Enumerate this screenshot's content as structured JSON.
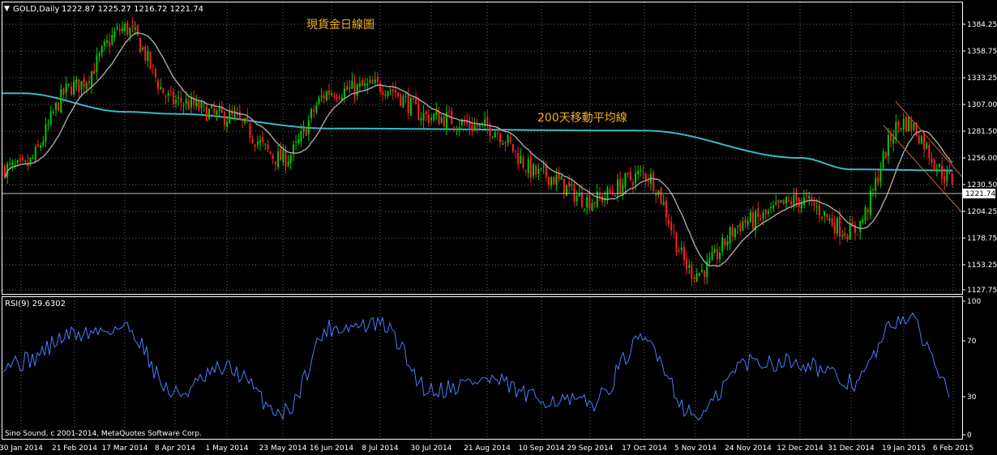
{
  "header": {
    "symbol_label": "GOLD,Daily",
    "ohlc": "1222.87 1225.27 1216.72 1221.74"
  },
  "annotations": {
    "title_cn": "現貨金日線圖",
    "ma200_label": "200天移動平均線",
    "copyright": "Sino Sound, c 2001-2014, MetaQuotes Software Corp."
  },
  "colors": {
    "background": "#000000",
    "frame": "#ffffff",
    "grid": "#6b6b6b",
    "bull": "#00cc00",
    "bear": "#ff2020",
    "ma_short": "#a8a8a8",
    "ma200": "#3ab8c8",
    "channel": "#c86432",
    "annotation": "#f0b020",
    "rsi": "#4a7cff",
    "current_price_line": "#c0c0c0"
  },
  "chart_data": [
    {
      "type": "candlestick",
      "instrument": "GOLD",
      "timeframe": "Daily",
      "last_price": 1221.74,
      "ylim": [
        1127.75,
        1397.0
      ],
      "y_ticks": [
        1384.25,
        1358.75,
        1333.25,
        1307.0,
        1281.5,
        1256.0,
        1230.5,
        1204.25,
        1178.75,
        1153.25,
        1127.75
      ],
      "current_price_label": "1221.74",
      "x_tick_labels": [
        "30 Jan 2014",
        "21 Feb 2014",
        "17 Mar 2014",
        "8 Apr 2014",
        "1 May 2014",
        "23 May 2014",
        "16 Jun 2014",
        "8 Jul 2014",
        "30 Jul 2014",
        "21 Aug 2014",
        "10 Sep 2014",
        "29 Sep 2014",
        "17 Oct 2014",
        "5 Nov 2014",
        "24 Nov 2014",
        "12 Dec 2014",
        "31 Dec 2014",
        "19 Jan 2015",
        "6 Feb 2015"
      ],
      "approx_closes": [
        {
          "date": "30 Jan 2014",
          "close": 1246
        },
        {
          "date": "21 Feb 2014",
          "close": 1325
        },
        {
          "date": "17 Mar 2014",
          "close": 1380
        },
        {
          "date": "8 Apr 2014",
          "close": 1310
        },
        {
          "date": "1 May 2014",
          "close": 1295
        },
        {
          "date": "23 May 2014",
          "close": 1255
        },
        {
          "date": "16 Jun 2014",
          "close": 1320
        },
        {
          "date": "8 Jul 2014",
          "close": 1325
        },
        {
          "date": "30 Jul 2014",
          "close": 1295
        },
        {
          "date": "21 Aug 2014",
          "close": 1285
        },
        {
          "date": "10 Sep 2014",
          "close": 1240
        },
        {
          "date": "29 Sep 2014",
          "close": 1215
        },
        {
          "date": "17 Oct 2014",
          "close": 1240
        },
        {
          "date": "5 Nov 2014",
          "close": 1145
        },
        {
          "date": "24 Nov 2014",
          "close": 1195
        },
        {
          "date": "12 Dec 2014",
          "close": 1215
        },
        {
          "date": "31 Dec 2014",
          "close": 1185
        },
        {
          "date": "19 Jan 2015",
          "close": 1290
        },
        {
          "date": "6 Feb 2015",
          "close": 1235
        },
        {
          "date": "end",
          "close": 1221.74
        }
      ],
      "ma200_approx": [
        {
          "date": "30 Jan 2014",
          "value": 1318
        },
        {
          "date": "17 Mar 2014",
          "value": 1300
        },
        {
          "date": "8 Apr 2014",
          "value": 1298
        },
        {
          "date": "16 Jun 2014",
          "value": 1284
        },
        {
          "date": "17 Oct 2014",
          "value": 1282
        },
        {
          "date": "12 Dec 2014",
          "value": 1256
        },
        {
          "date": "31 Dec 2014",
          "value": 1245
        },
        {
          "date": "6 Feb 2015",
          "value": 1244
        }
      ]
    },
    {
      "type": "line",
      "name": "RSI(9)",
      "label": "RSI(9) 29.6302",
      "last_value": 29.6302,
      "ylim": [
        0,
        100
      ],
      "y_ticks": [
        100,
        70,
        30,
        0
      ],
      "approx_values": [
        {
          "date": "30 Jan 2014",
          "value": 55
        },
        {
          "date": "21 Feb 2014",
          "value": 75
        },
        {
          "date": "17 Mar 2014",
          "value": 80
        },
        {
          "date": "8 Apr 2014",
          "value": 32
        },
        {
          "date": "1 May 2014",
          "value": 50
        },
        {
          "date": "23 May 2014",
          "value": 18
        },
        {
          "date": "16 Jun 2014",
          "value": 80
        },
        {
          "date": "8 Jul 2014",
          "value": 82
        },
        {
          "date": "30 Jul 2014",
          "value": 35
        },
        {
          "date": "21 Aug 2014",
          "value": 42
        },
        {
          "date": "10 Sep 2014",
          "value": 28
        },
        {
          "date": "29 Sep 2014",
          "value": 25
        },
        {
          "date": "17 Oct 2014",
          "value": 70
        },
        {
          "date": "5 Nov 2014",
          "value": 15
        },
        {
          "date": "24 Nov 2014",
          "value": 55
        },
        {
          "date": "12 Dec 2014",
          "value": 55
        },
        {
          "date": "31 Dec 2014",
          "value": 40
        },
        {
          "date": "19 Jan 2015",
          "value": 88
        },
        {
          "date": "6 Feb 2015",
          "value": 40
        },
        {
          "date": "end",
          "value": 29.63
        }
      ]
    }
  ]
}
